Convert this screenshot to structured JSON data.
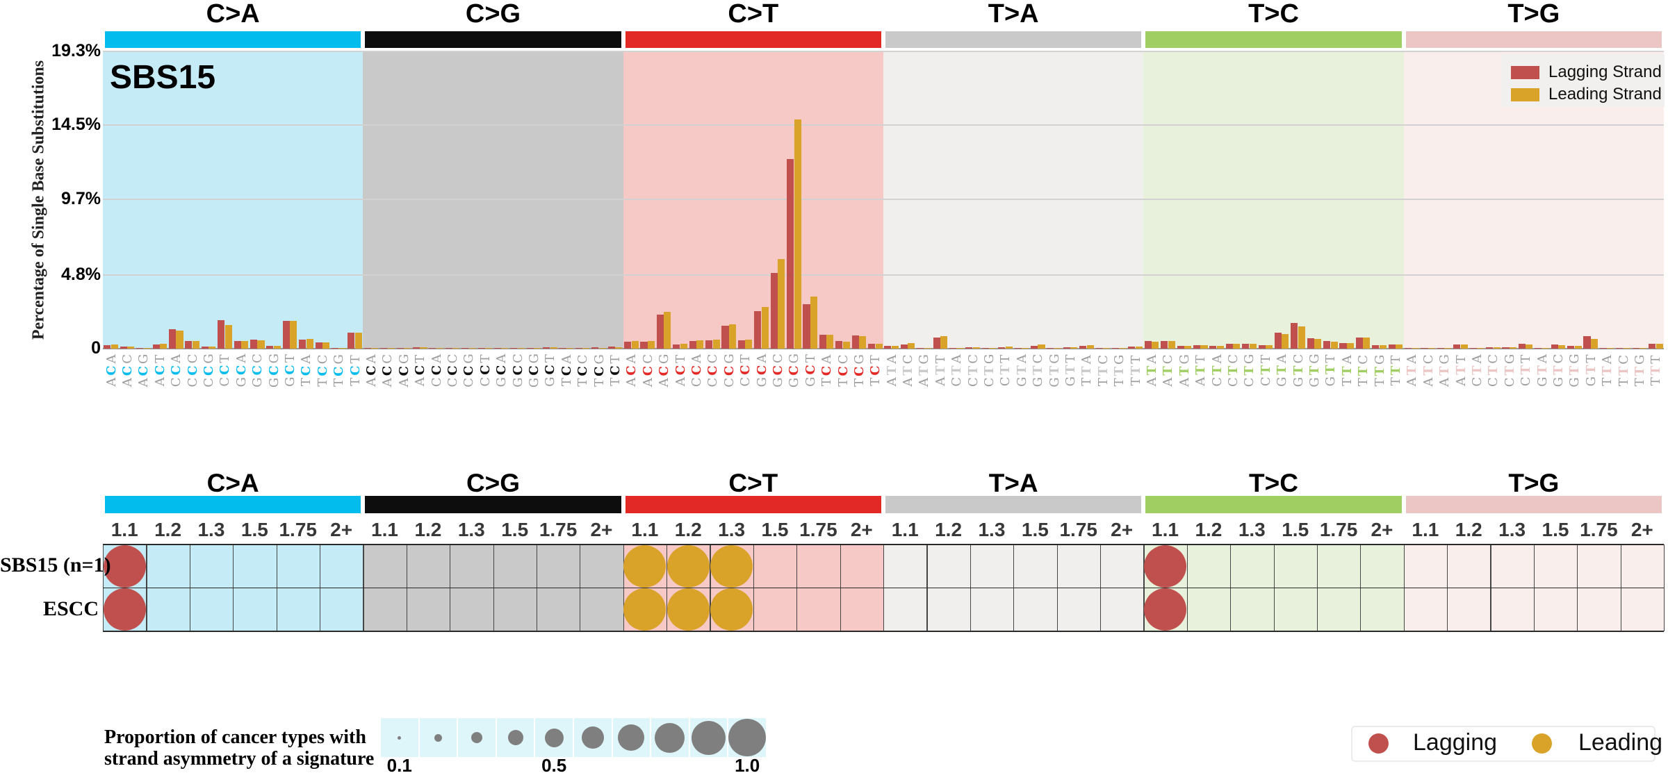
{
  "top_chart": {
    "title": "SBS15",
    "y_axis_label": "Percentage of Single Base Substitutions",
    "y_ticks": [
      {
        "label": "0",
        "value": 0
      },
      {
        "label": "4.8%",
        "value": 4.8
      },
      {
        "label": "9.7%",
        "value": 9.7
      },
      {
        "label": "14.5%",
        "value": 14.5
      },
      {
        "label": "19.3%",
        "value": 19.3
      }
    ],
    "legend": {
      "lagging_label": "Lagging Strand",
      "leading_label": "Leading Strand"
    }
  },
  "colors": {
    "lagging": "#C0504D",
    "leading": "#D9A32A",
    "size_bubble": "#7f7f7f",
    "size_cell_bg": "#DEF6F9"
  },
  "categories": [
    {
      "name": "C>A",
      "color": "#03BCEE",
      "bg": "#C4EBF6"
    },
    {
      "name": "C>G",
      "color": "#0D0D0D",
      "bg": "#C9C9C9"
    },
    {
      "name": "C>T",
      "color": "#E32926",
      "bg": "#F6C8C6"
    },
    {
      "name": "T>A",
      "color": "#CAC9C9",
      "bg": "#F0EFED"
    },
    {
      "name": "T>C",
      "color": "#A1CE63",
      "bg": "#E8F1DB"
    },
    {
      "name": "T>G",
      "color": "#EBC6C4",
      "bg": "#FAEEEC"
    }
  ],
  "chart_data": {
    "type": "bar",
    "title": "SBS15",
    "ylabel": "Percentage of Single Base Substitutions",
    "ylim": [
      0,
      19.3
    ],
    "ytick_values": [
      0,
      4.8,
      9.7,
      14.5,
      19.3
    ],
    "legend_position": "upper right",
    "series_names": [
      "Lagging Strand",
      "Leading Strand"
    ],
    "groups": [
      {
        "mutation": "C>A",
        "contexts": [
          "ACA",
          "ACC",
          "ACG",
          "ACT",
          "CCA",
          "CCC",
          "CCG",
          "CCT",
          "GCA",
          "GCC",
          "GCG",
          "GCT",
          "TCA",
          "TCC",
          "TCG",
          "TCT"
        ],
        "lagging": [
          0.22,
          0.12,
          0.04,
          0.26,
          1.25,
          0.48,
          0.14,
          1.85,
          0.5,
          0.58,
          0.2,
          1.82,
          0.57,
          0.42,
          0.03,
          1.05
        ],
        "leading": [
          0.25,
          0.14,
          0.05,
          0.3,
          1.15,
          0.5,
          0.15,
          1.55,
          0.5,
          0.52,
          0.2,
          1.8,
          0.63,
          0.4,
          0.04,
          1.02
        ]
      },
      {
        "mutation": "C>G",
        "contexts": [
          "ACA",
          "ACC",
          "ACG",
          "ACT",
          "CCA",
          "CCC",
          "CCG",
          "CCT",
          "GCA",
          "GCC",
          "GCG",
          "GCT",
          "TCA",
          "TCC",
          "TCG",
          "TCT"
        ],
        "lagging": [
          0.05,
          0.03,
          0.01,
          0.09,
          0.05,
          0.04,
          0.01,
          0.06,
          0.05,
          0.04,
          0.02,
          0.07,
          0.05,
          0.04,
          0.09,
          0.12
        ],
        "leading": [
          0.05,
          0.03,
          0.01,
          0.08,
          0.05,
          0.04,
          0.01,
          0.06,
          0.05,
          0.04,
          0.02,
          0.07,
          0.05,
          0.04,
          0.03,
          0.1
        ]
      },
      {
        "mutation": "C>T",
        "contexts": [
          "ACA",
          "ACC",
          "ACG",
          "ACT",
          "CCA",
          "CCC",
          "CCG",
          "CCT",
          "GCA",
          "GCC",
          "GCG",
          "GCT",
          "TCA",
          "TCC",
          "TCG",
          "TCT"
        ],
        "lagging": [
          0.45,
          0.45,
          2.2,
          0.25,
          0.5,
          0.55,
          1.5,
          0.55,
          2.45,
          4.9,
          12.3,
          2.9,
          0.9,
          0.5,
          0.85,
          0.32
        ],
        "leading": [
          0.5,
          0.5,
          2.4,
          0.3,
          0.55,
          0.6,
          1.6,
          0.6,
          2.7,
          5.8,
          14.9,
          3.4,
          0.88,
          0.45,
          0.8,
          0.3
        ]
      },
      {
        "mutation": "T>A",
        "contexts": [
          "ATA",
          "ATC",
          "ATG",
          "ATT",
          "CTA",
          "CTC",
          "CTG",
          "CTT",
          "GTA",
          "GTC",
          "GTG",
          "GTT",
          "TTA",
          "TTC",
          "TTG",
          "TTT"
        ],
        "lagging": [
          0.18,
          0.28,
          0.05,
          0.7,
          0.03,
          0.08,
          0.05,
          0.1,
          0.05,
          0.2,
          0.04,
          0.08,
          0.2,
          0.06,
          0.03,
          0.12
        ],
        "leading": [
          0.2,
          0.35,
          0.05,
          0.8,
          0.03,
          0.08,
          0.06,
          0.12,
          0.05,
          0.28,
          0.05,
          0.08,
          0.22,
          0.06,
          0.03,
          0.12
        ]
      },
      {
        "mutation": "T>C",
        "contexts": [
          "ATA",
          "ATC",
          "ATG",
          "ATT",
          "CTA",
          "CTC",
          "CTG",
          "CTT",
          "GTA",
          "GTC",
          "GTG",
          "GTT",
          "TTA",
          "TTC",
          "TTG",
          "TTT"
        ],
        "lagging": [
          0.48,
          0.48,
          0.16,
          0.22,
          0.2,
          0.32,
          0.32,
          0.22,
          1.05,
          1.65,
          0.68,
          0.5,
          0.34,
          0.7,
          0.24,
          0.26
        ],
        "leading": [
          0.44,
          0.48,
          0.16,
          0.22,
          0.2,
          0.3,
          0.3,
          0.22,
          0.95,
          1.45,
          0.62,
          0.46,
          0.36,
          0.74,
          0.24,
          0.26
        ]
      },
      {
        "mutation": "T>G",
        "contexts": [
          "ATA",
          "ATC",
          "ATG",
          "ATT",
          "CTA",
          "CTC",
          "CTG",
          "CTT",
          "GTA",
          "GTC",
          "GTG",
          "GTT",
          "TTA",
          "TTC",
          "TTG",
          "TTT"
        ],
        "lagging": [
          0.02,
          0.03,
          0.02,
          0.26,
          0.03,
          0.09,
          0.09,
          0.3,
          0.02,
          0.27,
          0.16,
          0.8,
          0.03,
          0.05,
          0.03,
          0.3
        ],
        "leading": [
          0.02,
          0.03,
          0.02,
          0.28,
          0.03,
          0.08,
          0.09,
          0.28,
          0.02,
          0.24,
          0.16,
          0.65,
          0.03,
          0.05,
          0.03,
          0.3
        ]
      }
    ]
  },
  "dot_plot": {
    "row_labels": [
      "SBS15 (n=1)",
      "ESCC"
    ],
    "column_labels": [
      "1.1",
      "1.2",
      "1.3",
      "1.5",
      "1.75",
      "2+"
    ],
    "circles": [
      {
        "row": "SBS15 (n=1)",
        "mutation": "C>A",
        "column": "1.1",
        "strand": "Lagging",
        "proportion": 1.0
      },
      {
        "row": "ESCC",
        "mutation": "C>A",
        "column": "1.1",
        "strand": "Lagging",
        "proportion": 1.0
      },
      {
        "row": "SBS15 (n=1)",
        "mutation": "C>T",
        "column": "1.1",
        "strand": "Leading",
        "proportion": 1.0
      },
      {
        "row": "ESCC",
        "mutation": "C>T",
        "column": "1.1",
        "strand": "Leading",
        "proportion": 1.0
      },
      {
        "row": "SBS15 (n=1)",
        "mutation": "C>T",
        "column": "1.2",
        "strand": "Leading",
        "proportion": 1.0
      },
      {
        "row": "ESCC",
        "mutation": "C>T",
        "column": "1.2",
        "strand": "Leading",
        "proportion": 1.0
      },
      {
        "row": "SBS15 (n=1)",
        "mutation": "C>T",
        "column": "1.3",
        "strand": "Leading",
        "proportion": 1.0
      },
      {
        "row": "ESCC",
        "mutation": "C>T",
        "column": "1.3",
        "strand": "Leading",
        "proportion": 1.0
      },
      {
        "row": "SBS15 (n=1)",
        "mutation": "T>C",
        "column": "1.1",
        "strand": "Lagging",
        "proportion": 1.0
      },
      {
        "row": "ESCC",
        "mutation": "T>C",
        "column": "1.1",
        "strand": "Lagging",
        "proportion": 1.0
      }
    ]
  },
  "size_legend": {
    "title_line1": "Proportion of cancer types with",
    "title_line2": "strand asymmetry of a signature",
    "values": [
      0.1,
      0.2,
      0.3,
      0.4,
      0.5,
      0.6,
      0.7,
      0.8,
      0.9,
      1.0
    ],
    "tick_labels": [
      "0.1",
      "0.5",
      "1.0"
    ]
  },
  "strand_legend": {
    "lagging": "Lagging",
    "leading": "Leading"
  }
}
